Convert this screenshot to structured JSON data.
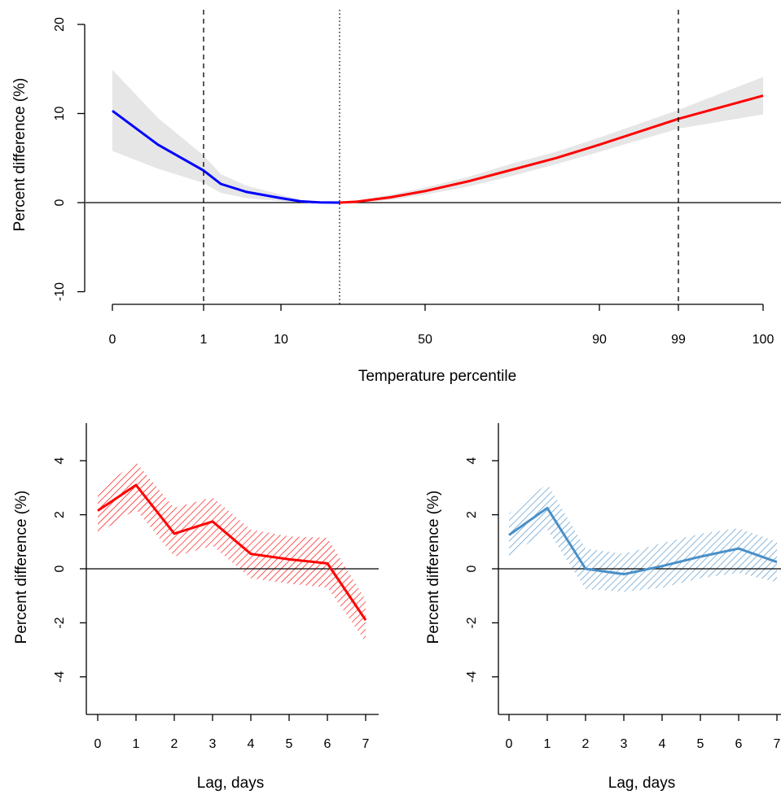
{
  "chart_data": [
    {
      "type": "line",
      "xlabel": "Temperature percentile",
      "ylabel": "Percent difference (%)",
      "ylim": [
        -10,
        20
      ],
      "yticks": [
        "-10",
        "0",
        "10",
        "20"
      ],
      "xticks": [
        {
          "pct": 0,
          "label": "0"
        },
        {
          "pct": 1,
          "label": "1"
        },
        {
          "pct": 10,
          "label": "10"
        },
        {
          "pct": 50,
          "label": "50"
        },
        {
          "pct": 90,
          "label": "90"
        },
        {
          "pct": 99,
          "label": "99"
        },
        {
          "pct": 100,
          "label": "100"
        }
      ],
      "reference_lines": {
        "dashed_percentiles": [
          1,
          99
        ],
        "dotted_percentile": 25
      },
      "colors": {
        "cold": "#0000ff",
        "heat": "#ff0000",
        "ci": "#e6e6e6"
      },
      "series": [
        {
          "color_role": "cold",
          "x": [
            0,
            0.5,
            1,
            3,
            6,
            10,
            15,
            20,
            25
          ],
          "y": [
            10.3,
            6.5,
            3.6,
            2.1,
            1.2,
            0.5,
            0.15,
            0.02,
            0.0
          ],
          "lower": [
            5.8,
            3.8,
            2.2,
            1.1,
            0.5,
            0.15,
            0.03,
            0.0,
            0.0
          ],
          "upper": [
            14.9,
            9.5,
            5.3,
            3.2,
            1.9,
            0.9,
            0.3,
            0.06,
            0.0
          ]
        },
        {
          "color_role": "heat",
          "x": [
            25,
            30,
            40,
            50,
            60,
            70,
            80,
            90,
            99,
            100
          ],
          "y": [
            0.0,
            0.1,
            0.6,
            1.3,
            2.4,
            3.7,
            5.0,
            6.5,
            9.4,
            12.0
          ],
          "lower": [
            0.0,
            0.0,
            0.3,
            0.9,
            1.8,
            3.0,
            4.3,
            5.7,
            8.3,
            9.9
          ],
          "upper": [
            0.0,
            0.2,
            0.9,
            1.7,
            2.9,
            4.4,
            5.7,
            7.3,
            10.4,
            14.1
          ]
        }
      ]
    },
    {
      "type": "line",
      "xlabel": "Lag, days",
      "ylabel": "Percent difference (%)",
      "ylim": [
        -5,
        5
      ],
      "yticks": [
        "-4",
        "-2",
        "0",
        "2",
        "4"
      ],
      "xticks": [
        "0",
        "1",
        "2",
        "3",
        "4",
        "5",
        "6",
        "7"
      ],
      "color": "#ff0000",
      "series": [
        {
          "x": [
            0,
            1,
            2,
            3,
            4,
            5,
            6,
            7
          ],
          "y": [
            2.15,
            3.1,
            1.3,
            1.75,
            0.55,
            0.35,
            0.2,
            -1.9
          ],
          "lower": [
            1.3,
            2.2,
            0.45,
            0.85,
            -0.35,
            -0.55,
            -0.7,
            -2.7
          ],
          "upper": [
            2.9,
            3.95,
            2.25,
            2.65,
            1.45,
            1.2,
            1.15,
            -1.15
          ]
        }
      ]
    },
    {
      "type": "line",
      "xlabel": "Lag, days",
      "ylabel": "Percent difference (%)",
      "ylim": [
        -5,
        5
      ],
      "yticks": [
        "-4",
        "-2",
        "0",
        "2",
        "4"
      ],
      "xticks": [
        "0",
        "1",
        "2",
        "3",
        "4",
        "5",
        "6",
        "7"
      ],
      "color": "#4a90c8",
      "series": [
        {
          "x": [
            0,
            1,
            2,
            3,
            4,
            5,
            6,
            7
          ],
          "y": [
            1.25,
            2.25,
            0.0,
            -0.2,
            0.1,
            0.45,
            0.75,
            0.25
          ],
          "lower": [
            0.45,
            1.45,
            -0.75,
            -0.85,
            -0.7,
            -0.35,
            -0.15,
            -0.5
          ],
          "upper": [
            2.05,
            3.15,
            0.75,
            0.55,
            0.95,
            1.3,
            1.5,
            1.0
          ]
        }
      ]
    }
  ]
}
